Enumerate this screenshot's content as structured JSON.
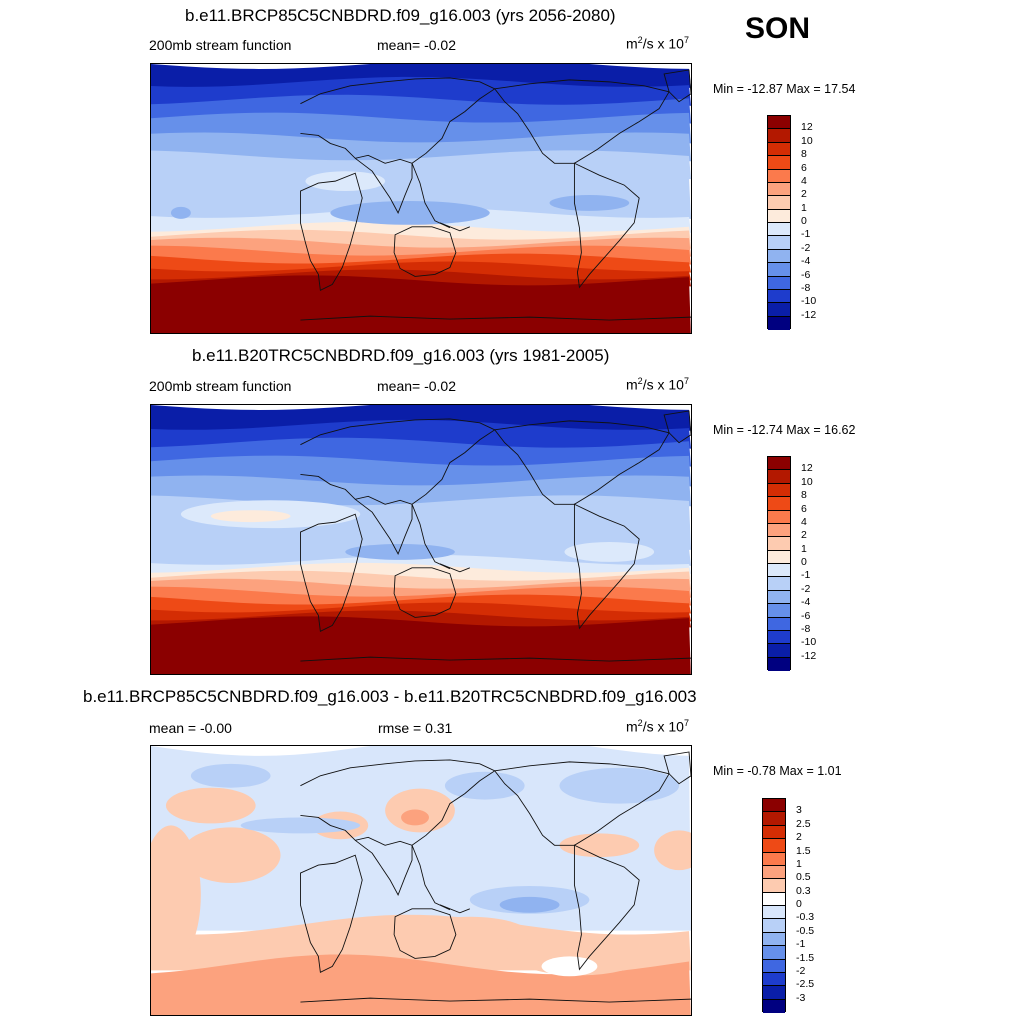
{
  "season": "SON",
  "panels": [
    {
      "title": "b.e11.BRCP85C5CNBDRD.f09_g16.003 (yrs 2056-2080)",
      "left_label": "200mb stream function",
      "center_label": "mean=  -0.02",
      "units_base": "m",
      "units_exp1": "2",
      "units_mid": "/s x 10",
      "units_exp2": "7",
      "minmax": "Min = -12.87 Max =  17.54",
      "field_type": "absolute",
      "colorbar": {
        "labels": [
          "12",
          "10",
          "8",
          "6",
          "4",
          "2",
          "1",
          "0",
          "-1",
          "-2",
          "-4",
          "-6",
          "-8",
          "-10",
          "-12"
        ],
        "colors": [
          "#8b0000",
          "#b31800",
          "#d42d04",
          "#ee4a16",
          "#fb7a4c",
          "#fca27e",
          "#fdcbb0",
          "#fdebdc",
          "#dce9fb",
          "#b8d0f7",
          "#90b3f0",
          "#6690ea",
          "#3f67e1",
          "#1e3ccc",
          "#0a1ea8",
          "#000080"
        ]
      },
      "bands": [
        {
          "y": 0,
          "color": "#0a1ea8"
        },
        {
          "y": 18,
          "color": "#1e3ccc"
        },
        {
          "y": 36,
          "color": "#3f67e1"
        },
        {
          "y": 54,
          "color": "#6690ea"
        },
        {
          "y": 74,
          "color": "#90b3f0"
        },
        {
          "y": 92,
          "color": "#b8d0f7"
        },
        {
          "y": 110,
          "color": "#b8d0f7"
        },
        {
          "y": 150,
          "color": "#dce9fb"
        },
        {
          "y": 164,
          "color": "#fdebdc"
        },
        {
          "y": 172,
          "color": "#fdcbb0"
        },
        {
          "y": 180,
          "color": "#fca27e"
        },
        {
          "y": 188,
          "color": "#fb7a4c"
        },
        {
          "y": 196,
          "color": "#ee4a16"
        },
        {
          "y": 204,
          "color": "#d42d04"
        },
        {
          "y": 212,
          "color": "#b31800"
        },
        {
          "y": 218,
          "color": "#8b0000"
        }
      ]
    },
    {
      "title": "b.e11.B20TRC5CNBDRD.f09_g16.003 (yrs 1981-2005)",
      "left_label": "200mb stream function",
      "center_label": "mean=  -0.02",
      "units_base": "m",
      "units_exp1": "2",
      "units_mid": "/s x 10",
      "units_exp2": "7",
      "minmax": "Min = -12.74 Max =  16.62",
      "field_type": "absolute",
      "colorbar": {
        "labels": [
          "12",
          "10",
          "8",
          "6",
          "4",
          "2",
          "1",
          "0",
          "-1",
          "-2",
          "-4",
          "-6",
          "-8",
          "-10",
          "-12"
        ],
        "colors": [
          "#8b0000",
          "#b31800",
          "#d42d04",
          "#ee4a16",
          "#fb7a4c",
          "#fca27e",
          "#fdcbb0",
          "#fdebdc",
          "#dce9fb",
          "#b8d0f7",
          "#90b3f0",
          "#6690ea",
          "#3f67e1",
          "#1e3ccc",
          "#0a1ea8",
          "#000080"
        ]
      },
      "bands": [
        {
          "y": 0,
          "color": "#0a1ea8"
        },
        {
          "y": 20,
          "color": "#1e3ccc"
        },
        {
          "y": 38,
          "color": "#3f67e1"
        },
        {
          "y": 56,
          "color": "#6690ea"
        },
        {
          "y": 76,
          "color": "#90b3f0"
        },
        {
          "y": 96,
          "color": "#b8d0f7"
        },
        {
          "y": 140,
          "color": "#b8d0f7"
        },
        {
          "y": 156,
          "color": "#dce9fb"
        },
        {
          "y": 164,
          "color": "#fdebdc"
        },
        {
          "y": 172,
          "color": "#fdcbb0"
        },
        {
          "y": 180,
          "color": "#fca27e"
        },
        {
          "y": 188,
          "color": "#fb7a4c"
        },
        {
          "y": 196,
          "color": "#ee4a16"
        },
        {
          "y": 204,
          "color": "#d42d04"
        },
        {
          "y": 212,
          "color": "#b31800"
        },
        {
          "y": 218,
          "color": "#8b0000"
        }
      ]
    },
    {
      "title": "b.e11.BRCP85C5CNBDRD.f09_g16.003 - b.e11.B20TRC5CNBDRD.f09_g16.003",
      "left_label": "mean =  -0.00",
      "center_label": "rmse =   0.31",
      "units_base": "m",
      "units_exp1": "2",
      "units_mid": "/s x 10",
      "units_exp2": "7",
      "minmax": "Min =  -0.78 Max =   1.01",
      "field_type": "difference",
      "colorbar": {
        "labels": [
          "3",
          "2.5",
          "2",
          "1.5",
          "1",
          "0.5",
          "0.3",
          "0",
          "-0.3",
          "-0.5",
          "-1",
          "-1.5",
          "-2",
          "-2.5",
          "-3"
        ],
        "colors": [
          "#8b0000",
          "#b31800",
          "#d42d04",
          "#ee4a16",
          "#fb7a4c",
          "#fca27e",
          "#fdcbb0",
          "#ffffff",
          "#d8e6fb",
          "#b8d0f7",
          "#90b3f0",
          "#6690ea",
          "#3f67e1",
          "#1e3ccc",
          "#0a1ea8",
          "#000080"
        ]
      },
      "bands": [
        {
          "y": 0,
          "color": "#d8e6fb"
        },
        {
          "y": 180,
          "color": "#fdcbb0"
        },
        {
          "y": 220,
          "color": "#fca27e"
        }
      ]
    }
  ]
}
